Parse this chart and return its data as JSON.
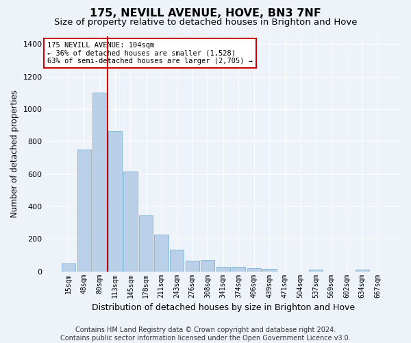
{
  "title": "175, NEVILL AVENUE, HOVE, BN3 7NF",
  "subtitle": "Size of property relative to detached houses in Brighton and Hove",
  "xlabel": "Distribution of detached houses by size in Brighton and Hove",
  "ylabel": "Number of detached properties",
  "footer_line1": "Contains HM Land Registry data © Crown copyright and database right 2024.",
  "footer_line2": "Contains public sector information licensed under the Open Government Licence v3.0.",
  "bar_labels": [
    "15sqm",
    "48sqm",
    "80sqm",
    "113sqm",
    "145sqm",
    "178sqm",
    "211sqm",
    "243sqm",
    "276sqm",
    "308sqm",
    "341sqm",
    "374sqm",
    "406sqm",
    "439sqm",
    "471sqm",
    "504sqm",
    "537sqm",
    "569sqm",
    "602sqm",
    "634sqm",
    "667sqm"
  ],
  "bar_values": [
    50,
    750,
    1100,
    865,
    615,
    345,
    225,
    135,
    65,
    70,
    30,
    30,
    20,
    15,
    0,
    0,
    12,
    0,
    0,
    12,
    0
  ],
  "bar_color": "#bad0e8",
  "bar_edge_color": "#6aaad4",
  "background_color": "#eef2f9",
  "grid_color": "#ffffff",
  "vline_color": "#cc0000",
  "annotation_text": "175 NEVILL AVENUE: 104sqm\n← 36% of detached houses are smaller (1,528)\n63% of semi-detached houses are larger (2,705) →",
  "annotation_box_facecolor": "#ffffff",
  "annotation_box_edgecolor": "#cc0000",
  "ylim": [
    0,
    1450
  ],
  "yticks": [
    0,
    200,
    400,
    600,
    800,
    1000,
    1200,
    1400
  ],
  "title_fontsize": 11.5,
  "subtitle_fontsize": 9.5,
  "ylabel_fontsize": 8.5,
  "xlabel_fontsize": 9,
  "tick_fontsize": 8,
  "xtick_fontsize": 7,
  "footer_fontsize": 7,
  "annotation_fontsize": 7.5,
  "vline_x_index": 2.5
}
